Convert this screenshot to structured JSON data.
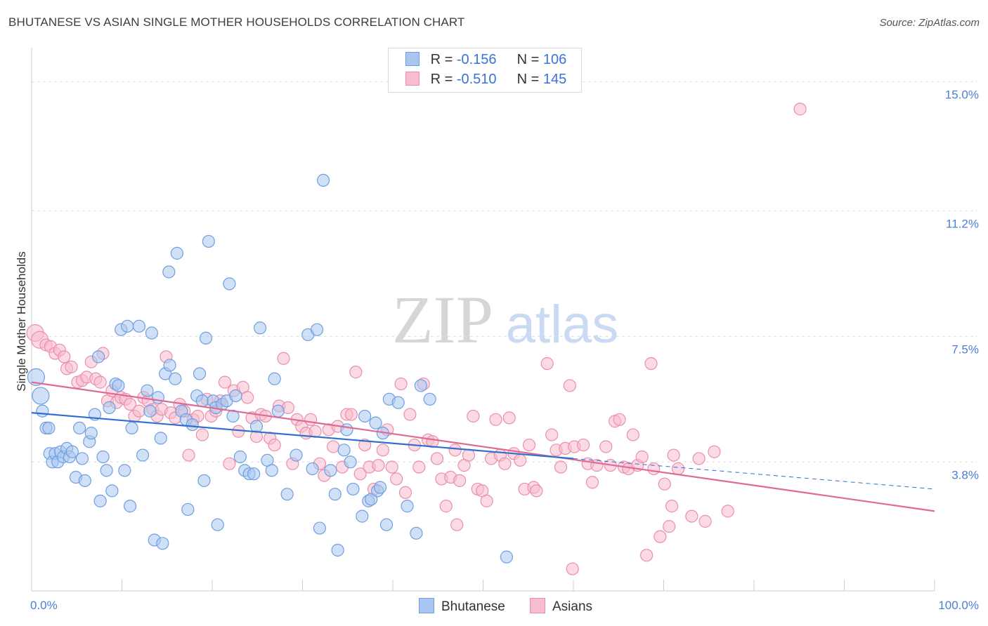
{
  "header": {
    "title": "BHUTANESE VS ASIAN SINGLE MOTHER HOUSEHOLDS CORRELATION CHART",
    "source": "Source: ZipAtlas.com"
  },
  "legend": {
    "rows": [
      {
        "r_label": "R =",
        "r_value": "-0.156",
        "n_label": "N =",
        "n_value": "106"
      },
      {
        "r_label": "R =",
        "r_value": "-0.510",
        "n_label": "N =",
        "n_value": "145"
      }
    ],
    "bottom": [
      "Bhutanese",
      "Asians"
    ]
  },
  "watermark": {
    "zip": "ZIP",
    "atlas": "atlas"
  },
  "colors": {
    "bhutanese_fill": "#a9c6f0",
    "bhutanese_stroke": "#6f9fe0",
    "bhutanese_line": "#2f6fd0",
    "asians_fill": "#f7bccd",
    "asians_stroke": "#ea8fab",
    "asians_line": "#e06a93",
    "tick_text": "#4a7fd6",
    "grid": "#dddddd"
  },
  "chart_data": {
    "type": "scatter",
    "title": "BHUTANESE VS ASIAN SINGLE MOTHER HOUSEHOLDS CORRELATION CHART",
    "xlabel": "",
    "ylabel": "Single Mother Households",
    "xlim": [
      0,
      100
    ],
    "ylim": [
      0,
      15.8
    ],
    "x_tick_labels": [
      "0.0%",
      "100.0%"
    ],
    "y_ticks": [
      3.8,
      7.5,
      11.2,
      15.0
    ],
    "y_tick_labels": [
      "3.8%",
      "7.5%",
      "11.2%",
      "15.0%"
    ],
    "grid": true,
    "legend_position": "top-center",
    "series": [
      {
        "name": "Bhutanese",
        "r": -0.156,
        "n": 106,
        "trend": {
          "x": [
            0,
            60
          ],
          "y": [
            5.25,
            3.9
          ],
          "dashed_extension_to": [
            100,
            3.0
          ]
        },
        "points": [
          [
            0.5,
            6.3
          ],
          [
            1,
            5.75
          ],
          [
            1.2,
            5.3
          ],
          [
            1.6,
            4.8
          ],
          [
            1.9,
            4.8
          ],
          [
            2,
            4.05
          ],
          [
            2.3,
            3.8
          ],
          [
            2.6,
            4.05
          ],
          [
            2.9,
            3.8
          ],
          [
            3.2,
            4.1
          ],
          [
            3.5,
            3.95
          ],
          [
            3.9,
            4.2
          ],
          [
            4.2,
            3.95
          ],
          [
            4.5,
            4.1
          ],
          [
            4.9,
            3.35
          ],
          [
            5.3,
            4.8
          ],
          [
            5.6,
            3.9
          ],
          [
            5.9,
            3.25
          ],
          [
            6.4,
            4.4
          ],
          [
            6.6,
            4.65
          ],
          [
            7,
            5.2
          ],
          [
            7.4,
            6.9
          ],
          [
            7.6,
            2.65
          ],
          [
            7.9,
            3.95
          ],
          [
            8.3,
            3.55
          ],
          [
            8.6,
            5.4
          ],
          [
            8.9,
            2.95
          ],
          [
            9.3,
            6.1
          ],
          [
            9.6,
            6.05
          ],
          [
            9.9,
            7.7
          ],
          [
            10.3,
            3.55
          ],
          [
            10.6,
            7.8
          ],
          [
            10.9,
            2.5
          ],
          [
            11.1,
            4.8
          ],
          [
            11.9,
            7.8
          ],
          [
            12.3,
            4.0
          ],
          [
            12.8,
            5.9
          ],
          [
            13.1,
            5.3
          ],
          [
            13.3,
            7.6
          ],
          [
            13.6,
            1.5
          ],
          [
            14,
            5.7
          ],
          [
            14.3,
            4.5
          ],
          [
            14.5,
            1.4
          ],
          [
            14.8,
            6.4
          ],
          [
            15.2,
            9.4
          ],
          [
            15.3,
            6.65
          ],
          [
            15.9,
            6.25
          ],
          [
            16.1,
            9.95
          ],
          [
            16.6,
            5.3
          ],
          [
            17.1,
            5.05
          ],
          [
            17.3,
            2.4
          ],
          [
            17.8,
            4.9
          ],
          [
            18.3,
            5.75
          ],
          [
            18.6,
            6.4
          ],
          [
            18.9,
            5.6
          ],
          [
            19.1,
            3.25
          ],
          [
            19.3,
            7.45
          ],
          [
            19.6,
            10.3
          ],
          [
            20.1,
            5.6
          ],
          [
            20.4,
            5.4
          ],
          [
            20.6,
            1.95
          ],
          [
            21.1,
            5.5
          ],
          [
            21.6,
            5.6
          ],
          [
            21.9,
            9.05
          ],
          [
            22.3,
            5.15
          ],
          [
            22.6,
            5.75
          ],
          [
            23.1,
            3.95
          ],
          [
            23.6,
            3.55
          ],
          [
            24.1,
            3.45
          ],
          [
            24.6,
            3.45
          ],
          [
            24.9,
            4.85
          ],
          [
            25.3,
            7.75
          ],
          [
            26.1,
            3.85
          ],
          [
            26.6,
            3.55
          ],
          [
            26.9,
            6.25
          ],
          [
            27.3,
            5.3
          ],
          [
            28.3,
            2.85
          ],
          [
            29.3,
            4.0
          ],
          [
            30.6,
            7.55
          ],
          [
            31.1,
            3.6
          ],
          [
            31.6,
            7.7
          ],
          [
            31.9,
            1.85
          ],
          [
            32.3,
            12.1
          ],
          [
            33.1,
            3.55
          ],
          [
            33.6,
            2.85
          ],
          [
            33.9,
            1.2
          ],
          [
            34.6,
            4.15
          ],
          [
            34.9,
            4.75
          ],
          [
            35.3,
            3.8
          ],
          [
            35.6,
            3.0
          ],
          [
            36.6,
            2.2
          ],
          [
            37.3,
            2.65
          ],
          [
            37.6,
            2.7
          ],
          [
            38.3,
            2.95
          ],
          [
            38.6,
            3.05
          ],
          [
            38.9,
            4.65
          ],
          [
            39.3,
            1.95
          ],
          [
            39.6,
            5.65
          ],
          [
            40.6,
            5.55
          ],
          [
            41.6,
            2.5
          ],
          [
            42.6,
            1.7
          ],
          [
            43.1,
            6.05
          ],
          [
            44.1,
            5.65
          ],
          [
            52.6,
            1.0
          ],
          [
            36.9,
            5.15
          ],
          [
            38.1,
            4.95
          ]
        ]
      },
      {
        "name": "Asians",
        "r": -0.51,
        "n": 145,
        "trend": {
          "x": [
            0,
            100
          ],
          "y": [
            6.15,
            2.35
          ]
        },
        "points": [
          [
            0.4,
            7.6
          ],
          [
            0.9,
            7.4
          ],
          [
            1.6,
            7.25
          ],
          [
            2.1,
            7.2
          ],
          [
            2.6,
            7.0
          ],
          [
            3.1,
            7.1
          ],
          [
            3.6,
            6.9
          ],
          [
            3.9,
            6.55
          ],
          [
            4.4,
            6.6
          ],
          [
            5.1,
            6.15
          ],
          [
            5.6,
            6.2
          ],
          [
            6.1,
            6.3
          ],
          [
            6.6,
            6.75
          ],
          [
            7.1,
            6.25
          ],
          [
            7.6,
            6.15
          ],
          [
            7.9,
            7.0
          ],
          [
            8.4,
            5.6
          ],
          [
            8.9,
            5.9
          ],
          [
            9.4,
            5.55
          ],
          [
            9.9,
            5.7
          ],
          [
            10.4,
            5.65
          ],
          [
            10.9,
            5.5
          ],
          [
            11.4,
            5.15
          ],
          [
            11.9,
            5.3
          ],
          [
            12.4,
            5.7
          ],
          [
            12.9,
            5.6
          ],
          [
            13.4,
            5.35
          ],
          [
            13.9,
            5.15
          ],
          [
            14.4,
            5.35
          ],
          [
            14.9,
            6.9
          ],
          [
            15.4,
            5.25
          ],
          [
            15.9,
            5.1
          ],
          [
            16.4,
            5.5
          ],
          [
            16.9,
            5.3
          ],
          [
            17.4,
            4.0
          ],
          [
            17.9,
            5.05
          ],
          [
            18.4,
            5.15
          ],
          [
            18.9,
            4.6
          ],
          [
            19.4,
            5.65
          ],
          [
            19.9,
            5.15
          ],
          [
            20.4,
            5.3
          ],
          [
            20.9,
            5.6
          ],
          [
            21.4,
            6.15
          ],
          [
            21.9,
            3.75
          ],
          [
            22.4,
            5.9
          ],
          [
            22.9,
            4.7
          ],
          [
            23.4,
            6.0
          ],
          [
            23.9,
            5.7
          ],
          [
            24.4,
            5.1
          ],
          [
            24.9,
            4.55
          ],
          [
            25.4,
            5.2
          ],
          [
            25.9,
            5.15
          ],
          [
            26.4,
            4.5
          ],
          [
            26.9,
            4.3
          ],
          [
            27.4,
            5.45
          ],
          [
            27.9,
            6.85
          ],
          [
            28.4,
            5.4
          ],
          [
            28.9,
            3.75
          ],
          [
            29.4,
            5.05
          ],
          [
            29.9,
            4.85
          ],
          [
            30.4,
            4.65
          ],
          [
            30.9,
            5.05
          ],
          [
            31.4,
            4.7
          ],
          [
            31.9,
            3.75
          ],
          [
            32.4,
            3.4
          ],
          [
            32.9,
            4.75
          ],
          [
            33.4,
            4.25
          ],
          [
            33.9,
            4.85
          ],
          [
            34.4,
            3.65
          ],
          [
            34.9,
            5.2
          ],
          [
            35.4,
            5.2
          ],
          [
            35.9,
            6.45
          ],
          [
            36.4,
            3.45
          ],
          [
            36.9,
            4.3
          ],
          [
            37.4,
            3.65
          ],
          [
            37.9,
            3.0
          ],
          [
            38.4,
            3.7
          ],
          [
            38.9,
            4.15
          ],
          [
            39.4,
            4.75
          ],
          [
            39.9,
            3.65
          ],
          [
            40.4,
            3.3
          ],
          [
            40.9,
            6.1
          ],
          [
            41.4,
            2.9
          ],
          [
            41.9,
            5.2
          ],
          [
            42.4,
            4.3
          ],
          [
            42.9,
            3.65
          ],
          [
            43.4,
            6.1
          ],
          [
            43.9,
            4.45
          ],
          [
            44.4,
            4.4
          ],
          [
            44.9,
            3.9
          ],
          [
            45.4,
            3.3
          ],
          [
            45.9,
            2.5
          ],
          [
            46.4,
            3.35
          ],
          [
            46.9,
            4.15
          ],
          [
            47.4,
            3.25
          ],
          [
            47.9,
            3.7
          ],
          [
            48.4,
            4.0
          ],
          [
            48.9,
            5.15
          ],
          [
            49.4,
            3.0
          ],
          [
            49.9,
            2.95
          ],
          [
            50.4,
            2.65
          ],
          [
            50.9,
            3.9
          ],
          [
            51.4,
            5.05
          ],
          [
            51.9,
            4.0
          ],
          [
            52.4,
            3.75
          ],
          [
            52.9,
            5.1
          ],
          [
            53.4,
            4.05
          ],
          [
            54.1,
            3.85
          ],
          [
            54.6,
            3.0
          ],
          [
            55.1,
            4.3
          ],
          [
            55.6,
            3.05
          ],
          [
            55.9,
            2.95
          ],
          [
            57.1,
            6.7
          ],
          [
            57.6,
            4.6
          ],
          [
            58.1,
            4.15
          ],
          [
            58.6,
            3.65
          ],
          [
            59.1,
            4.2
          ],
          [
            59.6,
            6.05
          ],
          [
            60.1,
            4.25
          ],
          [
            61.1,
            4.3
          ],
          [
            61.6,
            3.75
          ],
          [
            62.1,
            3.2
          ],
          [
            62.6,
            3.7
          ],
          [
            63.6,
            4.25
          ],
          [
            64.1,
            3.7
          ],
          [
            64.6,
            5.0
          ],
          [
            65.1,
            5.05
          ],
          [
            65.6,
            3.65
          ],
          [
            66.1,
            3.6
          ],
          [
            66.6,
            4.6
          ],
          [
            67.1,
            3.7
          ],
          [
            67.6,
            3.95
          ],
          [
            68.1,
            1.05
          ],
          [
            68.6,
            6.7
          ],
          [
            68.9,
            3.6
          ],
          [
            69.6,
            1.6
          ],
          [
            70.1,
            3.15
          ],
          [
            70.6,
            1.9
          ],
          [
            70.9,
            2.5
          ],
          [
            71.1,
            4.0
          ],
          [
            71.6,
            3.6
          ],
          [
            73.1,
            2.2
          ],
          [
            74.6,
            2.05
          ],
          [
            75.6,
            4.1
          ],
          [
            77.1,
            2.35
          ],
          [
            85.1,
            14.2
          ],
          [
            59.9,
            0.65
          ],
          [
            47.1,
            1.95
          ],
          [
            73.9,
            3.9
          ]
        ]
      }
    ]
  }
}
